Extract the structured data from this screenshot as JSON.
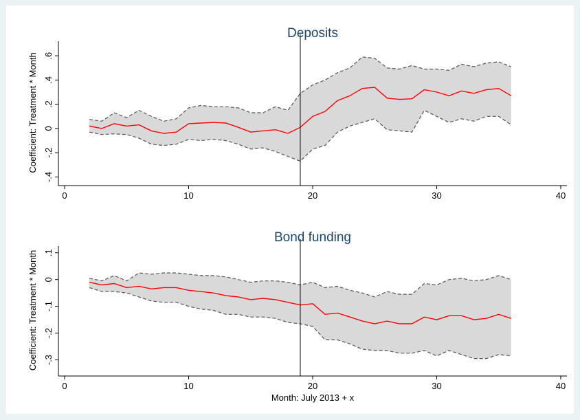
{
  "chart_data": [
    {
      "type": "line",
      "title": "Deposits",
      "ylabel": "Coefficient: Treatment * Month",
      "x": [
        2,
        3,
        4,
        5,
        6,
        7,
        8,
        9,
        10,
        11,
        12,
        13,
        14,
        15,
        16,
        17,
        18,
        19,
        20,
        21,
        22,
        23,
        24,
        25,
        26,
        27,
        28,
        29,
        30,
        31,
        32,
        33,
        34,
        35,
        36
      ],
      "values": [
        0.02,
        0.0,
        0.04,
        0.02,
        0.03,
        -0.02,
        -0.04,
        -0.03,
        0.04,
        0.045,
        0.05,
        0.045,
        0.01,
        -0.03,
        -0.02,
        -0.01,
        -0.04,
        0.01,
        0.1,
        0.14,
        0.23,
        0.27,
        0.33,
        0.34,
        0.25,
        0.24,
        0.245,
        0.32,
        0.3,
        0.27,
        0.31,
        0.29,
        0.32,
        0.33,
        0.27
      ],
      "ci_high": [
        0.075,
        0.06,
        0.13,
        0.09,
        0.15,
        0.1,
        0.06,
        0.08,
        0.17,
        0.19,
        0.18,
        0.18,
        0.17,
        0.13,
        0.13,
        0.18,
        0.15,
        0.29,
        0.36,
        0.4,
        0.46,
        0.5,
        0.59,
        0.58,
        0.5,
        0.49,
        0.52,
        0.49,
        0.49,
        0.48,
        0.53,
        0.51,
        0.54,
        0.55,
        0.51
      ],
      "ci_low": [
        -0.03,
        -0.05,
        -0.045,
        -0.05,
        -0.08,
        -0.13,
        -0.14,
        -0.13,
        -0.09,
        -0.1,
        -0.09,
        -0.1,
        -0.13,
        -0.17,
        -0.16,
        -0.19,
        -0.23,
        -0.27,
        -0.17,
        -0.14,
        -0.03,
        0.02,
        0.05,
        0.08,
        -0.01,
        -0.02,
        -0.03,
        0.15,
        0.1,
        0.05,
        0.08,
        0.06,
        0.1,
        0.1,
        0.03
      ],
      "color": "#ff0000",
      "ci_color": "#555555",
      "band_color": "#d9d9d9",
      "vline": 19,
      "xlim": [
        -0.5,
        40.5
      ],
      "xticks": [
        0,
        10,
        20,
        30,
        40
      ],
      "ylim": [
        -0.46,
        0.72
      ],
      "yticks": [
        {
          "value": -0.4,
          "label": "-.4"
        },
        {
          "value": -0.2,
          "label": "-.2"
        },
        0,
        {
          "value": 0.2,
          "label": ".2"
        },
        {
          "value": 0.4,
          "label": ".4"
        },
        {
          "value": 0.6,
          "label": ".6"
        }
      ]
    },
    {
      "type": "line",
      "title": "Bond funding",
      "ylabel": "Coefficient: Treatment * Month",
      "xlabel": "Month: July 2013 + x",
      "x": [
        2,
        3,
        4,
        5,
        6,
        7,
        8,
        9,
        10,
        11,
        12,
        13,
        14,
        15,
        16,
        17,
        18,
        19,
        20,
        21,
        22,
        23,
        24,
        25,
        26,
        27,
        28,
        29,
        30,
        31,
        32,
        33,
        34,
        35,
        36
      ],
      "values": [
        -0.01,
        -0.02,
        -0.015,
        -0.03,
        -0.025,
        -0.035,
        -0.03,
        -0.03,
        -0.04,
        -0.045,
        -0.05,
        -0.06,
        -0.065,
        -0.075,
        -0.07,
        -0.075,
        -0.085,
        -0.095,
        -0.09,
        -0.13,
        -0.125,
        -0.14,
        -0.155,
        -0.165,
        -0.155,
        -0.165,
        -0.165,
        -0.14,
        -0.15,
        -0.135,
        -0.135,
        -0.15,
        -0.145,
        -0.13,
        -0.145
      ],
      "ci_high": [
        0.005,
        -0.005,
        0.015,
        -0.005,
        0.025,
        0.02,
        0.025,
        0.025,
        0.02,
        0.015,
        0.015,
        0.01,
        0.0,
        -0.01,
        -0.005,
        -0.005,
        -0.01,
        -0.02,
        -0.01,
        -0.03,
        -0.025,
        -0.04,
        -0.05,
        -0.065,
        -0.045,
        -0.055,
        -0.055,
        -0.015,
        -0.02,
        0.0,
        0.005,
        -0.005,
        0.0,
        0.015,
        0.0
      ],
      "ci_low": [
        -0.03,
        -0.045,
        -0.045,
        -0.05,
        -0.065,
        -0.08,
        -0.085,
        -0.085,
        -0.1,
        -0.11,
        -0.115,
        -0.13,
        -0.13,
        -0.14,
        -0.14,
        -0.145,
        -0.16,
        -0.165,
        -0.175,
        -0.225,
        -0.225,
        -0.24,
        -0.26,
        -0.265,
        -0.265,
        -0.275,
        -0.275,
        -0.265,
        -0.285,
        -0.265,
        -0.28,
        -0.295,
        -0.295,
        -0.28,
        -0.285
      ],
      "color": "#ff0000",
      "ci_color": "#555555",
      "band_color": "#d9d9d9",
      "vline": 19,
      "xlim": [
        -0.5,
        40.5
      ],
      "xticks": [
        0,
        10,
        20,
        30,
        40
      ],
      "ylim": [
        -0.355,
        0.125
      ],
      "yticks": [
        {
          "value": -0.3,
          "label": "-.3"
        },
        {
          "value": -0.2,
          "label": "-.2"
        },
        {
          "value": -0.1,
          "label": "-.1"
        },
        0,
        {
          "value": 0.1,
          "label": ".1"
        }
      ]
    }
  ]
}
